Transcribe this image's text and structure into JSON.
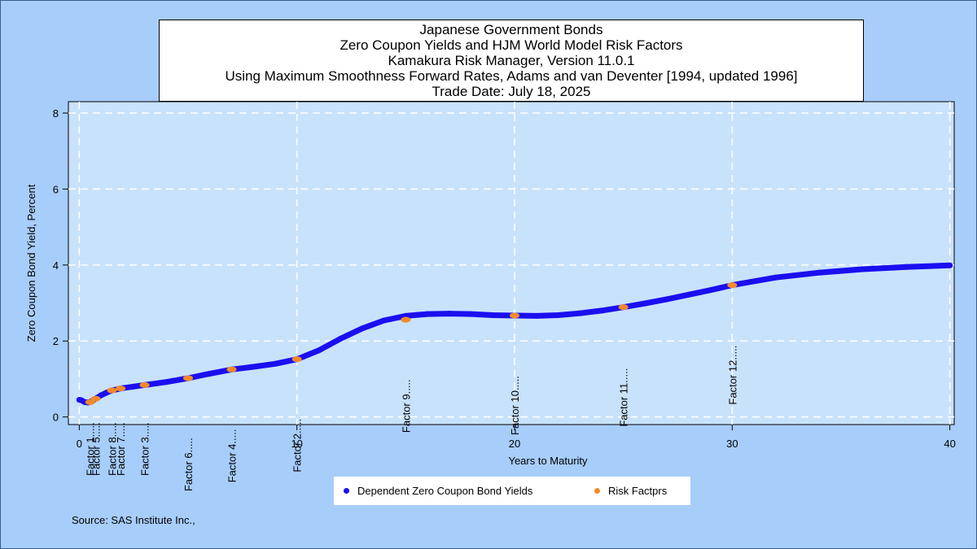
{
  "titles": [
    "Japanese Government Bonds",
    "Zero Coupon Yields and HJM World Model Risk Factors",
    "Kamakura Risk Manager, Version 11.0.1",
    "Using Maximum Smoothness Forward Rates, Adams and van Deventer [1994, updated 1996]",
    "Trade Date: July 18, 2025"
  ],
  "source": "Source: SAS Institute Inc.,",
  "colors": {
    "page_background": "#a7cdfb",
    "plot_background": "#c9e2fc",
    "grid": "#ffffff",
    "yield_series": "#1a0ff0",
    "risk_factor_series": "#f28a2a"
  },
  "chart_data": {
    "type": "line",
    "xlabel": "Years to Maturity",
    "ylabel": "Zero Coupon Bond Yield, Percent",
    "xlim": [
      -0.5,
      40.2
    ],
    "ylim": [
      -0.2,
      8.3
    ],
    "xticks": [
      0,
      10,
      20,
      30,
      40
    ],
    "yticks": [
      0,
      2,
      4,
      6,
      8
    ],
    "grid": true,
    "legend_position": "bottom",
    "series": [
      {
        "name": "Dependent Zero Coupon Bond Yields",
        "marker": "dot",
        "x": [
          0,
          0.1,
          0.25,
          0.4,
          0.6,
          0.8,
          1,
          1.25,
          1.5,
          2,
          2.5,
          3,
          4,
          5,
          6,
          7,
          8,
          9,
          10,
          11,
          12,
          13,
          14,
          15,
          16,
          17,
          18,
          19,
          20,
          21,
          22,
          23,
          24,
          25,
          26,
          27,
          28,
          29,
          30,
          32,
          34,
          36,
          38,
          40
        ],
        "values": [
          0.45,
          0.44,
          0.39,
          0.38,
          0.42,
          0.5,
          0.57,
          0.64,
          0.7,
          0.76,
          0.8,
          0.84,
          0.92,
          1.02,
          1.14,
          1.25,
          1.32,
          1.4,
          1.52,
          1.75,
          2.06,
          2.33,
          2.54,
          2.66,
          2.71,
          2.72,
          2.71,
          2.68,
          2.67,
          2.66,
          2.68,
          2.73,
          2.8,
          2.89,
          2.99,
          3.1,
          3.22,
          3.34,
          3.47,
          3.67,
          3.8,
          3.89,
          3.95,
          3.99
        ]
      },
      {
        "name": "Risk Factprs",
        "marker": "dot",
        "x": [
          0.5,
          0.75,
          1.5,
          1.9,
          3,
          5,
          7,
          10,
          15,
          20,
          25,
          30
        ],
        "values": [
          0.39,
          0.48,
          0.7,
          0.75,
          0.84,
          1.02,
          1.25,
          1.52,
          2.56,
          2.67,
          2.89,
          3.47
        ],
        "labels": [
          "Factor 1.....",
          "Factor 5.....",
          "Factor 8.....",
          "Factor 7.....",
          "Factor 3.....",
          "Factor 6.....",
          "Factor 4.....",
          "Factor 2.....",
          "Factor 9.....",
          "Factor 10.....",
          "Factor 11.....",
          "Factor 12....."
        ]
      }
    ]
  }
}
